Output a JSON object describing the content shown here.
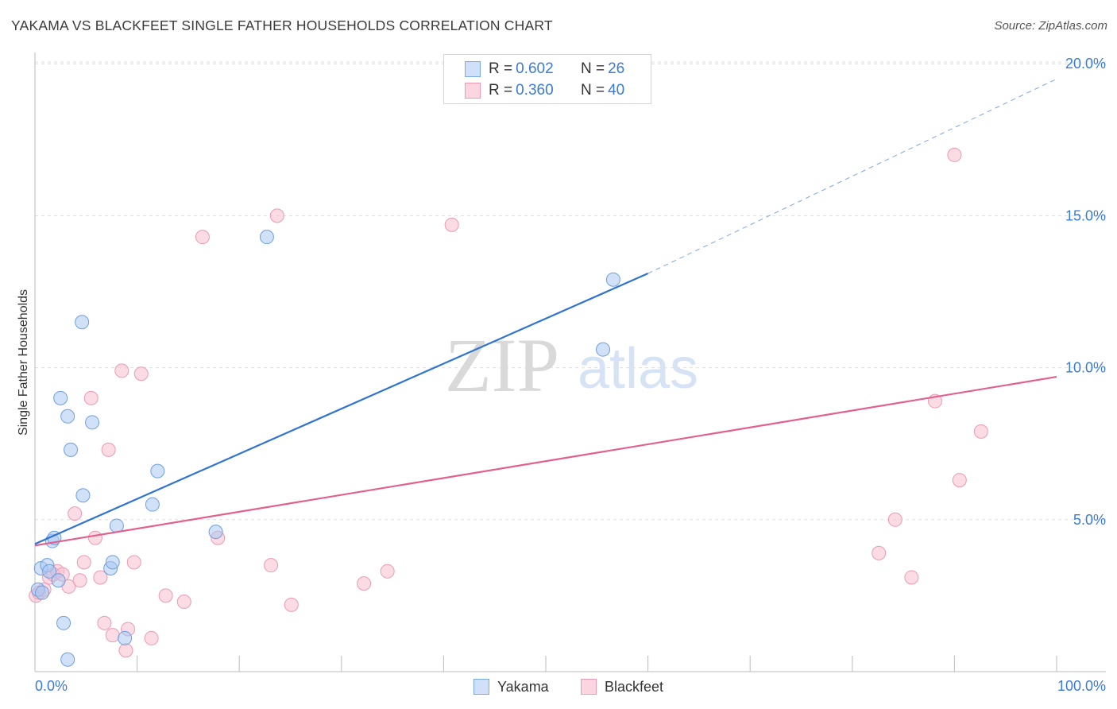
{
  "title": "YAKAMA VS BLACKFEET SINGLE FATHER HOUSEHOLDS CORRELATION CHART",
  "source": "Source: ZipAtlas.com",
  "watermark": {
    "zip": "ZIP",
    "atlas": "atlas"
  },
  "legend": {
    "rows": [
      {
        "label": "R = ",
        "r": "0.602",
        "n_label": "N = ",
        "n": "26",
        "color": "#a9c8f2",
        "border": "#7aaae6"
      },
      {
        "label": "R = ",
        "r": "0.360",
        "n_label": "N = ",
        "n": "40",
        "color": "#f7bfd0",
        "border": "#ee9ab5"
      }
    ]
  },
  "bottom_legend": {
    "yakama": "Yakama",
    "blackfeet": "Blackfeet"
  },
  "chart_data": {
    "type": "scatter",
    "title": "YAKAMA VS BLACKFEET SINGLE FATHER HOUSEHOLDS CORRELATION CHART",
    "xlabel": "",
    "ylabel": "Single Father Households",
    "xlim": [
      0,
      100
    ],
    "ylim": [
      0,
      20
    ],
    "x_tick_labels": {
      "min": "0.0%",
      "max": "100.0%"
    },
    "y_ticks": [
      5,
      10,
      15,
      20
    ],
    "y_tick_labels": [
      "5.0%",
      "10.0%",
      "15.0%",
      "20.0%"
    ],
    "grid": true,
    "series": [
      {
        "name": "Yakama",
        "color": "#a9c8f2",
        "edge": "#6f9fe0",
        "line_color": "#2f74d0",
        "trend": {
          "x0": 0,
          "y0": 4.2,
          "x1": 60,
          "y1": 13.1,
          "dashed_to_x": 100,
          "dashed_to_y": 19.5
        },
        "points": [
          [
            0.3,
            2.7
          ],
          [
            0.7,
            2.6
          ],
          [
            0.6,
            3.4
          ],
          [
            1.2,
            3.5
          ],
          [
            1.4,
            3.3
          ],
          [
            1.7,
            4.3
          ],
          [
            1.9,
            4.4
          ],
          [
            2.3,
            3.0
          ],
          [
            2.8,
            1.6
          ],
          [
            3.2,
            0.4
          ],
          [
            2.5,
            9.0
          ],
          [
            3.2,
            8.4
          ],
          [
            3.5,
            7.3
          ],
          [
            4.6,
            11.5
          ],
          [
            4.7,
            5.8
          ],
          [
            5.6,
            8.2
          ],
          [
            7.4,
            3.4
          ],
          [
            7.6,
            3.6
          ],
          [
            8.0,
            4.8
          ],
          [
            8.8,
            1.1
          ],
          [
            11.5,
            5.5
          ],
          [
            12.0,
            6.6
          ],
          [
            17.7,
            4.6
          ],
          [
            22.7,
            14.3
          ],
          [
            55.6,
            10.6
          ],
          [
            56.6,
            12.9
          ]
        ]
      },
      {
        "name": "Blackfeet",
        "color": "#f7bfd0",
        "edge": "#ec9ab4",
        "line_color": "#e2608e",
        "trend": {
          "x0": 0,
          "y0": 4.15,
          "x1": 100,
          "y1": 9.7
        },
        "points": [
          [
            0.1,
            2.5
          ],
          [
            0.4,
            2.6
          ],
          [
            0.9,
            2.7
          ],
          [
            1.4,
            3.1
          ],
          [
            1.8,
            3.2
          ],
          [
            2.2,
            3.3
          ],
          [
            2.7,
            3.2
          ],
          [
            3.3,
            2.8
          ],
          [
            3.9,
            5.2
          ],
          [
            4.4,
            3.0
          ],
          [
            4.8,
            3.6
          ],
          [
            5.5,
            9.0
          ],
          [
            5.9,
            4.4
          ],
          [
            6.4,
            3.1
          ],
          [
            6.8,
            1.6
          ],
          [
            7.2,
            7.3
          ],
          [
            7.6,
            1.2
          ],
          [
            8.5,
            9.9
          ],
          [
            8.9,
            0.7
          ],
          [
            9.1,
            1.4
          ],
          [
            9.7,
            3.6
          ],
          [
            10.4,
            9.8
          ],
          [
            11.4,
            1.1
          ],
          [
            12.8,
            2.5
          ],
          [
            14.6,
            2.3
          ],
          [
            16.4,
            14.3
          ],
          [
            17.9,
            4.4
          ],
          [
            23.1,
            3.5
          ],
          [
            23.7,
            15.0
          ],
          [
            25.1,
            2.2
          ],
          [
            32.2,
            2.9
          ],
          [
            34.5,
            3.3
          ],
          [
            40.8,
            14.7
          ],
          [
            82.6,
            3.9
          ],
          [
            84.2,
            5.0
          ],
          [
            85.8,
            3.1
          ],
          [
            88.1,
            8.9
          ],
          [
            90.0,
            17.0
          ],
          [
            90.5,
            6.3
          ],
          [
            92.6,
            7.9
          ]
        ]
      }
    ]
  }
}
